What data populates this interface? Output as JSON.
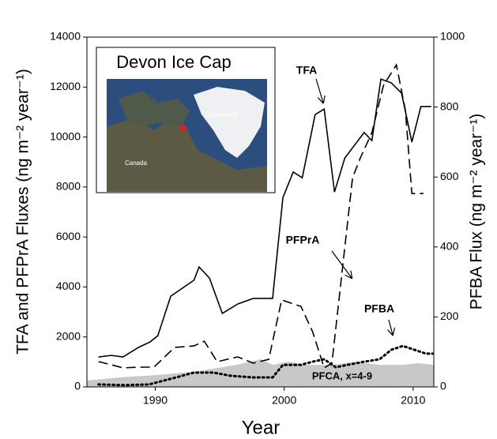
{
  "chart_data": {
    "type": "line",
    "x_label": "Year",
    "y_label": "TFA and PFPrA Fluxes (ng m⁻² year⁻¹)",
    "y2_label": "PFBA Flux (ng m⁻² year⁻¹)",
    "xlim": [
      1984.7,
      2011.6
    ],
    "xticks": [
      1990,
      2000,
      2010
    ],
    "ylim": [
      0,
      14000
    ],
    "yticks": [
      0,
      2000,
      4000,
      6000,
      8000,
      10000,
      12000,
      14000
    ],
    "y2lim": [
      0,
      1000
    ],
    "y2ticks": [
      0,
      200,
      400,
      600,
      800,
      1000
    ],
    "series": [
      {
        "name": "PFCA, x=4-9",
        "kind": "area",
        "axis": "y2",
        "color": "#c8c8c8",
        "x": [
          1984.7,
          1987.2,
          1990.2,
          1993.3,
          1996.3,
          1998.2,
          1999.1,
          2000.3,
          2001.8,
          2003.7,
          2005.5,
          2007.4,
          2009.2,
          2010.4,
          2011.6
        ],
        "values": [
          18,
          27,
          34,
          45,
          63,
          79,
          63,
          72,
          63,
          63,
          72,
          63,
          63,
          68,
          63
        ]
      },
      {
        "name": "TFA",
        "kind": "line",
        "axis": "y",
        "style": "solid",
        "color": "#000000",
        "x": [
          1985.6,
          1986.6,
          1987.5,
          1988.7,
          1989.6,
          1990.2,
          1991.2,
          1993.0,
          1993.4,
          1994.2,
          1995.2,
          1996.4,
          1997.6,
          1999.1,
          1999.9,
          2000.7,
          2001.4,
          2002.4,
          2003.1,
          2003.9,
          2004.7,
          2006.2,
          2006.8,
          2007.5,
          2008.3,
          2009.1,
          2009.9,
          2010.6,
          2011.4
        ],
        "values": [
          1200,
          1260,
          1200,
          1580,
          1800,
          2050,
          3630,
          4270,
          4800,
          4360,
          2940,
          3320,
          3540,
          3540,
          7580,
          8600,
          8370,
          10900,
          11120,
          7800,
          9160,
          10180,
          9860,
          12320,
          12170,
          11760,
          9800,
          11220,
          11220
        ]
      },
      {
        "name": "PFPrA",
        "kind": "line",
        "axis": "y",
        "style": "dashed",
        "color": "#000000",
        "x": [
          1985.6,
          1986.6,
          1987.5,
          1988.7,
          1989.9,
          1991.5,
          1993.0,
          1993.8,
          1994.8,
          1996.4,
          1997.6,
          1998.8,
          1999.8,
          2001.3,
          2002.2,
          2003.1,
          2003.7,
          2005.3,
          2005.9,
          2006.8,
          2007.7,
          2008.7,
          2009.4,
          2009.9,
          2010.8
        ],
        "values": [
          1010,
          885,
          760,
          790,
          790,
          1580,
          1640,
          1830,
          1010,
          1200,
          950,
          1100,
          3480,
          3220,
          2210,
          760,
          950,
          8370,
          9160,
          10180,
          12070,
          12890,
          11060,
          7740,
          7740
        ]
      },
      {
        "name": "PFBA",
        "kind": "line",
        "axis": "y2",
        "style": "dotted",
        "color": "#000000",
        "x": [
          1985.6,
          1987.7,
          1989.5,
          1991.2,
          1993.0,
          1994.5,
          1995.8,
          1997.6,
          1999.1,
          1999.9,
          2001.3,
          2002.2,
          2003.1,
          2004.0,
          2004.9,
          2006.2,
          2007.4,
          2008.3,
          2009.2,
          2010.1,
          2011.0,
          2011.5
        ],
        "values": [
          7,
          5,
          7,
          23,
          41,
          41,
          32,
          27,
          27,
          63,
          63,
          72,
          79,
          56,
          63,
          72,
          79,
          106,
          117,
          106,
          95,
          95
        ]
      }
    ],
    "annotations": [
      "TFA",
      "PFPrA",
      "PFBA",
      "PFCA, x=4-9"
    ],
    "inset": {
      "title": "Devon Ice Cap",
      "labels": [
        "Greenland",
        "Canada"
      ]
    }
  }
}
